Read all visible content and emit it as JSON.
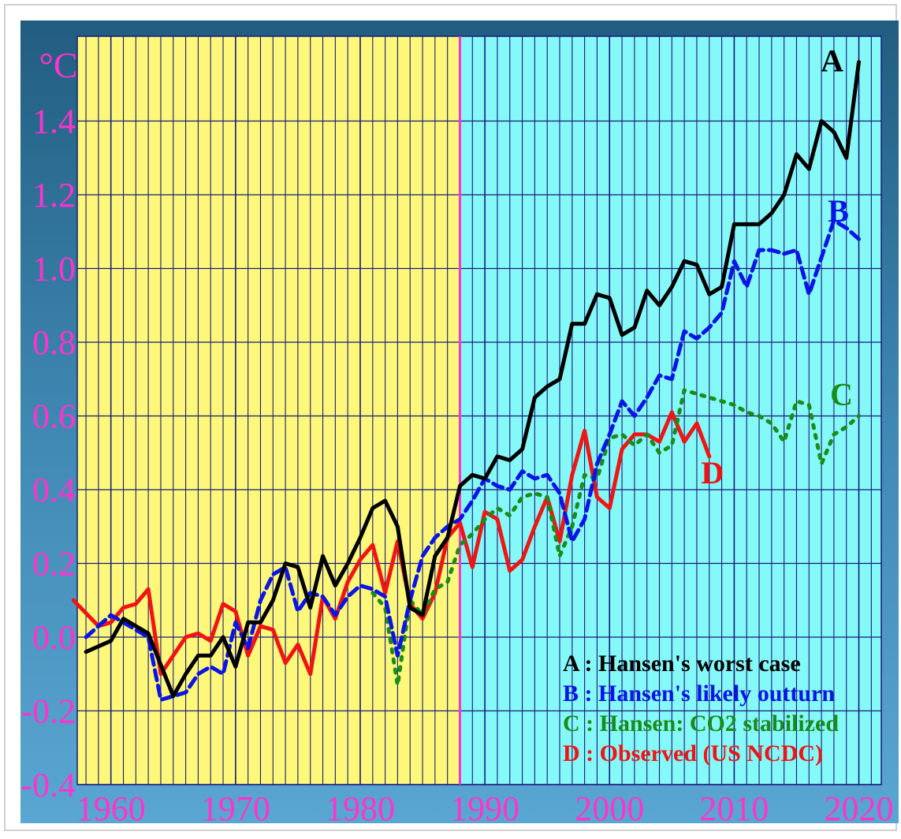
{
  "chart_data": {
    "type": "line",
    "title": "",
    "xlabel": "",
    "ylabel": "",
    "unit_label": "°C",
    "xlim": [
      1957.3,
      2021.8
    ],
    "ylim": [
      -0.4,
      1.63
    ],
    "x_ticks": [
      1960,
      1970,
      1980,
      1990,
      2000,
      2010,
      2020
    ],
    "y_ticks": [
      -0.4,
      -0.2,
      0.0,
      0.2,
      0.4,
      0.6,
      0.8,
      1.0,
      1.2,
      1.4
    ],
    "y_tick_labels": [
      "-0.4",
      "-0.2",
      "0.0",
      "0.2",
      "0.4",
      "0.6",
      "0.8",
      "1.0",
      "1.2",
      "1.4"
    ],
    "grid": true,
    "background_split_year": 1988,
    "colors": {
      "frame": "#2f6f94",
      "pre_1988_background": "#fdf87a",
      "post_1988_background": "#85f8f8",
      "grid": "#1a1a7a",
      "tick_labels": "#ff33cc",
      "split_line": "#ff33cc"
    },
    "legend_position": "bottom-right",
    "series": [
      {
        "name": "A : Hansen's worst case",
        "end_label": "A",
        "color": "#000000",
        "style": "solid",
        "x": [
          1958,
          1960,
          1961,
          1963,
          1965,
          1966,
          1967,
          1968,
          1969,
          1970,
          1971,
          1972,
          1973,
          1974,
          1975,
          1976,
          1977,
          1978,
          1979,
          1980,
          1981,
          1982,
          1983,
          1984,
          1985,
          1986,
          1987,
          1988,
          1989,
          1990,
          1991,
          1992,
          1993,
          1994,
          1995,
          1996,
          1997,
          1998,
          1999,
          2000,
          2001,
          2002,
          2003,
          2004,
          2005,
          2006,
          2007,
          2008,
          2009,
          2010,
          2011,
          2012,
          2013,
          2014,
          2015,
          2016,
          2017,
          2018,
          2019,
          2020
        ],
        "y": [
          -0.04,
          -0.01,
          0.05,
          0.01,
          -0.16,
          -0.1,
          -0.05,
          -0.05,
          0.0,
          -0.08,
          0.04,
          0.04,
          0.1,
          0.2,
          0.19,
          0.08,
          0.22,
          0.14,
          0.2,
          0.27,
          0.35,
          0.37,
          0.3,
          0.08,
          0.06,
          0.22,
          0.27,
          0.41,
          0.44,
          0.43,
          0.49,
          0.48,
          0.51,
          0.65,
          0.68,
          0.7,
          0.85,
          0.85,
          0.93,
          0.92,
          0.82,
          0.84,
          0.94,
          0.9,
          0.95,
          1.02,
          1.01,
          0.93,
          0.95,
          1.12,
          1.12,
          1.12,
          1.15,
          1.2,
          1.31,
          1.27,
          1.4,
          1.37,
          1.3,
          1.56
        ]
      },
      {
        "name": "B : Hansen's likely outturn",
        "end_label": "B",
        "color": "#0a14e6",
        "style": "dashed",
        "x": [
          1958,
          1960,
          1961,
          1962,
          1963,
          1964,
          1965,
          1966,
          1967,
          1968,
          1969,
          1970,
          1971,
          1972,
          1973,
          1974,
          1975,
          1976,
          1977,
          1978,
          1979,
          1980,
          1981,
          1982,
          1983,
          1984,
          1985,
          1986,
          1987,
          1988,
          1989,
          1990,
          1991,
          1992,
          1993,
          1994,
          1995,
          1996,
          1997,
          1998,
          1999,
          2000,
          2001,
          2002,
          2003,
          2004,
          2005,
          2006,
          2007,
          2008,
          2009,
          2010,
          2011,
          2012,
          2013,
          2014,
          2015,
          2016,
          2017,
          2018,
          2019,
          2020
        ],
        "y": [
          0.0,
          0.06,
          0.04,
          0.02,
          0.0,
          -0.17,
          -0.16,
          -0.15,
          -0.1,
          -0.08,
          -0.1,
          0.04,
          -0.03,
          0.1,
          0.17,
          0.19,
          0.07,
          0.12,
          0.11,
          0.06,
          0.11,
          0.14,
          0.13,
          0.11,
          -0.05,
          0.1,
          0.22,
          0.27,
          0.3,
          0.32,
          0.37,
          0.43,
          0.41,
          0.4,
          0.45,
          0.43,
          0.44,
          0.39,
          0.26,
          0.32,
          0.47,
          0.55,
          0.64,
          0.6,
          0.65,
          0.71,
          0.7,
          0.83,
          0.81,
          0.84,
          0.88,
          1.02,
          0.95,
          1.05,
          1.05,
          1.04,
          1.05,
          0.93,
          1.03,
          1.13,
          1.11,
          1.08
        ]
      },
      {
        "name": "C : Hansen: CO2 stabilized",
        "end_label": "C",
        "color": "#1a8c1a",
        "style": "dotted",
        "x": [
          1981,
          1982,
          1983,
          1984,
          1985,
          1986,
          1987,
          1988,
          1989,
          1990,
          1991,
          1992,
          1993,
          1994,
          1995,
          1996,
          1997,
          1998,
          1999,
          2000,
          2001,
          2002,
          2003,
          2004,
          2005,
          2006,
          2007,
          2008,
          2009,
          2010,
          2011,
          2012,
          2013,
          2014,
          2015,
          2016,
          2017,
          2018,
          2019,
          2020
        ],
        "y": [
          0.12,
          0.08,
          -0.13,
          0.1,
          0.06,
          0.13,
          0.15,
          0.25,
          0.28,
          0.32,
          0.35,
          0.33,
          0.38,
          0.39,
          0.38,
          0.22,
          0.3,
          0.44,
          0.43,
          0.54,
          0.55,
          0.52,
          0.55,
          0.5,
          0.52,
          0.67,
          0.66,
          0.65,
          0.64,
          0.63,
          0.61,
          0.6,
          0.58,
          0.53,
          0.64,
          0.63,
          0.47,
          0.55,
          0.57,
          0.6
        ]
      },
      {
        "name": "D : Observed (US NCDC)",
        "end_label": "D",
        "color": "#f01414",
        "style": "solid",
        "x": [
          1957,
          1959,
          1960,
          1961,
          1962,
          1963,
          1964,
          1965,
          1966,
          1967,
          1968,
          1969,
          1970,
          1971,
          1972,
          1973,
          1974,
          1975,
          1976,
          1977,
          1978,
          1979,
          1980,
          1981,
          1982,
          1983,
          1984,
          1985,
          1986,
          1987,
          1988,
          1989,
          1990,
          1991,
          1992,
          1993,
          1994,
          1995,
          1996,
          1997,
          1998,
          1999,
          2000,
          2001,
          2002,
          2003,
          2004,
          2005,
          2006,
          2007,
          2008
        ],
        "y": [
          0.1,
          0.03,
          0.04,
          0.08,
          0.09,
          0.13,
          -0.1,
          -0.05,
          0.0,
          0.01,
          -0.01,
          0.09,
          0.07,
          -0.05,
          0.03,
          0.02,
          -0.07,
          -0.02,
          -0.1,
          0.11,
          0.05,
          0.15,
          0.21,
          0.25,
          0.12,
          0.26,
          0.09,
          0.05,
          0.12,
          0.27,
          0.31,
          0.19,
          0.34,
          0.32,
          0.18,
          0.21,
          0.3,
          0.38,
          0.26,
          0.44,
          0.56,
          0.38,
          0.35,
          0.51,
          0.55,
          0.55,
          0.53,
          0.61,
          0.53,
          0.58,
          0.49
        ]
      }
    ]
  }
}
